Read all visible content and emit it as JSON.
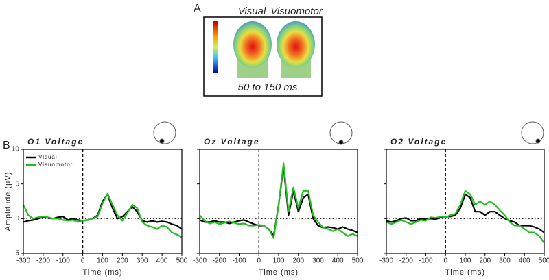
{
  "panel_labels": [
    "A",
    "B"
  ],
  "topomap": {
    "labels": [
      "Visual",
      "Visuomotor"
    ],
    "window": "50 to 150 ms"
  },
  "chart_data": [
    {
      "type": "line",
      "title": "O1 Voltage",
      "x_label": "Time (ms)",
      "y_label": "Amplitude (µV)",
      "x": [
        -300,
        -275,
        -250,
        -225,
        -200,
        -175,
        -150,
        -125,
        -100,
        -75,
        -50,
        -25,
        0,
        25,
        50,
        75,
        100,
        125,
        150,
        175,
        200,
        225,
        250,
        275,
        300,
        325,
        350,
        375,
        400,
        425,
        450,
        475,
        500
      ],
      "xlim": [
        -300,
        500
      ],
      "xticks": [
        -300,
        -200,
        -100,
        0,
        100,
        200,
        300,
        400,
        500
      ],
      "ylim": [
        -5,
        10
      ],
      "yticks": [
        -5,
        0,
        5,
        10
      ],
      "ytick_labels": true,
      "legend": "upper left",
      "series": [
        {
          "name": "Visual",
          "color": "#000000",
          "values": [
            -0.5,
            -0.3,
            -0.2,
            0,
            0.2,
            0.1,
            0,
            0.2,
            0.3,
            -0.2,
            0,
            -0.2,
            -0.3,
            -0.2,
            0,
            0.5,
            2.5,
            3.5,
            1.5,
            0,
            0.3,
            1,
            1.7,
            1,
            -0.3,
            -0.5,
            -0.3,
            -0.5,
            -0.4,
            -0.5,
            -0.8,
            -1,
            -1.5
          ]
        },
        {
          "name": "Visuomotor",
          "color": "#1fbf1f",
          "values": [
            2,
            0.5,
            0,
            0.2,
            0.3,
            0.2,
            0,
            0,
            -0.2,
            -0.3,
            -0.2,
            -0.5,
            -0.3,
            -0.2,
            0,
            0.3,
            2.2,
            3.6,
            2,
            0.5,
            -0.3,
            0.8,
            2,
            1.5,
            -0.5,
            -1,
            -1.2,
            -1.5,
            -1,
            -1.2,
            -2,
            -2.3,
            -2.7
          ]
        }
      ]
    },
    {
      "type": "line",
      "title": "Oz Voltage",
      "x_label": "Time (ms)",
      "x": [
        -300,
        -275,
        -250,
        -225,
        -200,
        -175,
        -150,
        -125,
        -100,
        -75,
        -50,
        -25,
        0,
        25,
        50,
        75,
        100,
        125,
        150,
        175,
        200,
        225,
        250,
        275,
        300,
        325,
        350,
        375,
        400,
        425,
        450,
        475,
        500
      ],
      "xlim": [
        -300,
        500
      ],
      "xticks": [
        -300,
        -200,
        -100,
        0,
        100,
        200,
        300,
        400,
        500
      ],
      "ylim": [
        -5,
        10
      ],
      "yticks": [
        -5,
        0,
        5,
        10
      ],
      "ytick_labels": false,
      "series": [
        {
          "color": "#000000",
          "values": [
            -0.2,
            -0.5,
            -0.5,
            -0.3,
            -0.5,
            -0.5,
            -0.7,
            -0.5,
            -0.3,
            -0.2,
            -0.5,
            -0.8,
            -1,
            -1,
            -1.5,
            -2.5,
            2,
            7.5,
            0.5,
            4,
            1,
            3,
            3.5,
            0,
            -1,
            -1.3,
            -1.2,
            -1.3,
            -1.5,
            -1.2,
            -1.5,
            -1.7,
            -2
          ]
        },
        {
          "color": "#1fbf1f",
          "values": [
            0.5,
            -0.3,
            -0.7,
            -0.5,
            -0.8,
            -0.6,
            -0.4,
            -0.6,
            -0.8,
            -0.7,
            -1,
            -1,
            -0.9,
            -1,
            -1.5,
            -2.8,
            2,
            8,
            1,
            4.5,
            1.5,
            4,
            4,
            0.5,
            -0.5,
            -1.3,
            -1.5,
            -1.8,
            -1.5,
            -2,
            -2.5,
            -2.2,
            -2.5
          ]
        }
      ]
    },
    {
      "type": "line",
      "title": "O2 Voltage",
      "x_label": "Time (ms)",
      "x": [
        -300,
        -275,
        -250,
        -225,
        -200,
        -175,
        -150,
        -125,
        -100,
        -75,
        -50,
        -25,
        0,
        25,
        50,
        75,
        100,
        125,
        150,
        175,
        200,
        225,
        250,
        275,
        300,
        325,
        350,
        375,
        400,
        425,
        450,
        475,
        500
      ],
      "xlim": [
        -300,
        500
      ],
      "xticks": [
        -300,
        -200,
        -100,
        0,
        100,
        200,
        300,
        400,
        500
      ],
      "ylim": [
        -5,
        10
      ],
      "yticks": [
        -5,
        0,
        5,
        10
      ],
      "ytick_labels": false,
      "series": [
        {
          "color": "#000000",
          "values": [
            -0.3,
            -0.5,
            -0.3,
            0,
            0.1,
            -0.3,
            -0.3,
            0,
            -0.1,
            0,
            -0.1,
            0.2,
            0.3,
            0.3,
            0.5,
            1.5,
            3.5,
            3,
            1,
            1,
            0.5,
            1,
            1,
            0.5,
            0,
            -0.3,
            -0.5,
            -1,
            -1,
            -1,
            -1.2,
            -1.5,
            -2
          ]
        },
        {
          "color": "#1fbf1f",
          "values": [
            -0.5,
            -0.8,
            -0.5,
            -0.2,
            -0.5,
            -0.8,
            -0.5,
            -0.2,
            -0.3,
            0.2,
            0.1,
            0.3,
            0.2,
            0.5,
            0.7,
            2,
            4,
            3.5,
            2,
            2.5,
            2,
            2.5,
            2,
            1.2,
            0.5,
            -0.5,
            -1,
            -1,
            -1.5,
            -2,
            -2,
            -2.5,
            -3.5
          ]
        }
      ]
    }
  ]
}
